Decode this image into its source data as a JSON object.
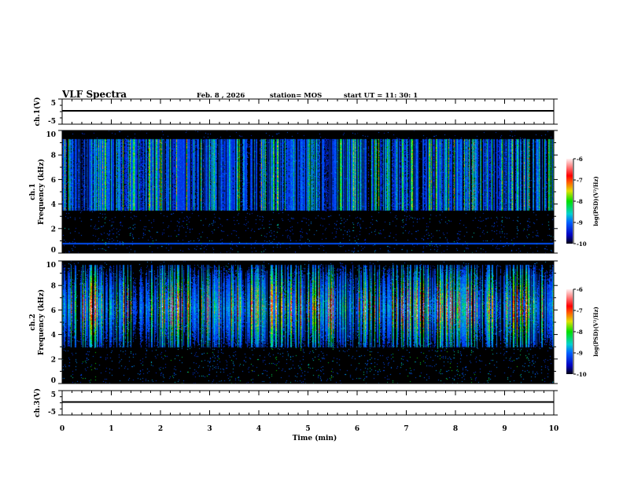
{
  "header": {
    "title": "VLF Spectra",
    "date": "Feb. 8 , 2026",
    "station": "station= MOS",
    "start": "start  UT =   11: 30: 1"
  },
  "chart_data": [
    {
      "type": "line",
      "name": "ch1",
      "ylabel": "ch.1(V)",
      "ylim": [
        -5,
        5
      ],
      "yticks": [
        "5",
        "-5"
      ],
      "level": 0
    },
    {
      "type": "heatmap",
      "name": "ch1-spectrogram",
      "ylabel": "ch.1 Frequency (kHz)",
      "ylim": [
        0,
        10
      ],
      "yticks": [
        "0",
        "2",
        "4",
        "6",
        "8",
        "10"
      ],
      "colorbar": {
        "label": "log(PSD)(V²/Hz)",
        "range": [
          -10,
          -6
        ],
        "ticks": [
          "-6",
          "-7",
          "-8",
          "-9",
          "-10"
        ]
      }
    },
    {
      "type": "heatmap",
      "name": "ch2-spectrogram",
      "ylabel": "ch.2 Frequency (kHz)",
      "ylim": [
        0,
        10
      ],
      "yticks": [
        "0",
        "2",
        "4",
        "6",
        "8",
        "10"
      ],
      "colorbar": {
        "label": "log(PSD)(V²/Hz)",
        "range": [
          -10,
          -6
        ],
        "ticks": [
          "-6",
          "-7",
          "-8",
          "-9",
          "-10"
        ]
      }
    },
    {
      "type": "line",
      "name": "ch3",
      "ylabel": "ch.3(V)",
      "ylim": [
        -5,
        5
      ],
      "yticks": [
        "5",
        "-5"
      ],
      "level": 0
    },
    {
      "xlabel": "Time (min)",
      "xlim": [
        0,
        10
      ],
      "xticks": [
        "0",
        "1",
        "2",
        "3",
        "4",
        "5",
        "6",
        "7",
        "8",
        "9",
        "10"
      ]
    }
  ]
}
